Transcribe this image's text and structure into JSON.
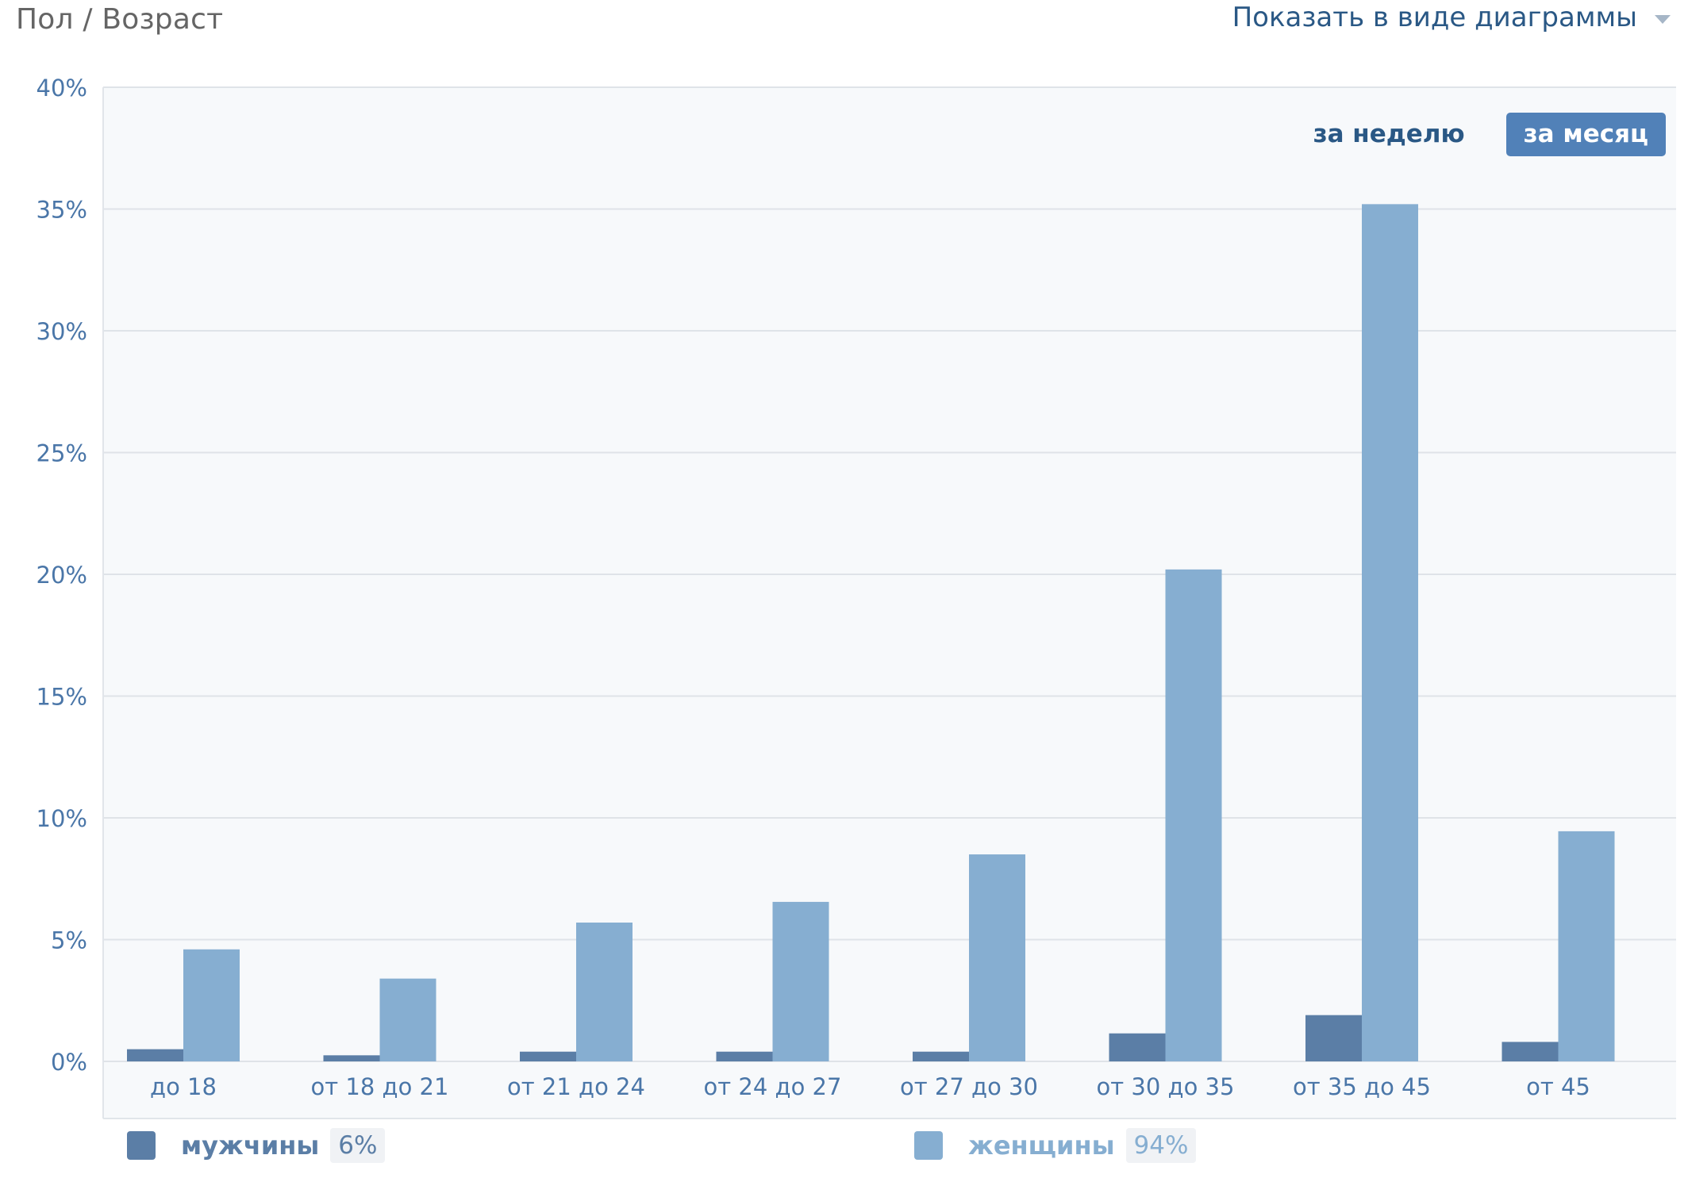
{
  "header": {
    "title": "Пол / Возраст",
    "view_mode_label": "Показать в виде диаграммы"
  },
  "period_toggle": {
    "week_label": "за неделю",
    "month_label": "за месяц",
    "active": "month"
  },
  "colors": {
    "men": "#5b7ea6",
    "women": "#86aed1",
    "axis_text": "#4a76a8",
    "grid": "#dfe3e8",
    "plot_bg": "#f7f9fb"
  },
  "legend": {
    "men": {
      "label": "мужчины",
      "percent": "6%"
    },
    "women": {
      "label": "женщины",
      "percent": "94%"
    }
  },
  "chart_data": {
    "type": "bar",
    "categories": [
      "до 18",
      "от 18 до 21",
      "от 21 до 24",
      "от 24 до 27",
      "от 27 до 30",
      "от 30 до 35",
      "от 35 до 45",
      "от 45"
    ],
    "series": [
      {
        "name": "мужчины",
        "values": [
          0.5,
          0.25,
          0.4,
          0.4,
          0.4,
          1.15,
          1.9,
          0.8
        ]
      },
      {
        "name": "женщины",
        "values": [
          4.6,
          3.4,
          5.7,
          6.55,
          8.5,
          20.2,
          35.2,
          9.45
        ]
      }
    ],
    "yticks": [
      "0%",
      "5%",
      "10%",
      "15%",
      "20%",
      "25%",
      "30%",
      "35%",
      "40%"
    ],
    "ylim": [
      0,
      40
    ],
    "grid": true,
    "legend_position": "bottom"
  }
}
